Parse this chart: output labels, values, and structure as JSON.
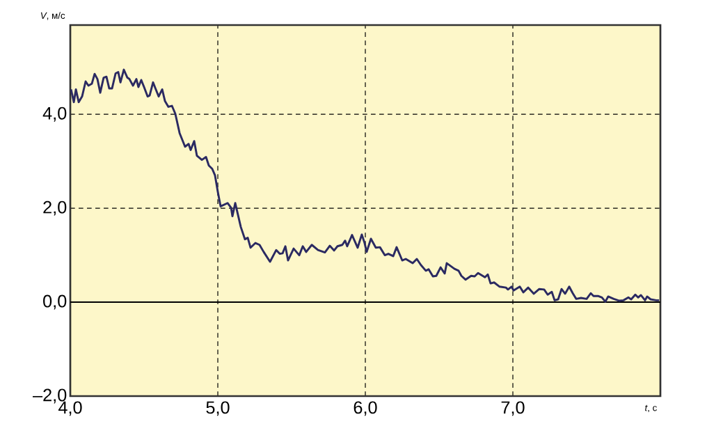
{
  "chart_data": {
    "type": "line",
    "xlabel": "*t*, с",
    "ylabel": "*V*, м/с",
    "xlim": [
      4,
      8
    ],
    "ylim": [
      -2,
      5.9
    ],
    "xticks": [
      {
        "value": 4,
        "label": "4,0"
      },
      {
        "value": 5,
        "label": "5,0"
      },
      {
        "value": 6,
        "label": "6,0"
      },
      {
        "value": 7,
        "label": "7,0"
      }
    ],
    "yticks": [
      {
        "value": -2,
        "label": "–2,0"
      },
      {
        "value": 0,
        "label": "0,0"
      },
      {
        "value": 2,
        "label": "2,0"
      },
      {
        "value": 4,
        "label": "4,0"
      }
    ],
    "grid": true,
    "ref_lines": [
      {
        "axis": "y",
        "value": 0,
        "color": "#000000",
        "line_style": "solid"
      }
    ],
    "series": [
      {
        "color": "#2b2a62",
        "x": [
          4.005,
          4.024,
          4.038,
          4.057,
          4.08,
          4.104,
          4.123,
          4.146,
          4.165,
          4.184,
          4.203,
          4.226,
          4.245,
          4.264,
          4.283,
          4.307,
          4.325,
          4.34,
          4.363,
          4.387,
          4.401,
          4.425,
          4.448,
          4.462,
          4.481,
          4.5,
          4.524,
          4.538,
          4.561,
          4.58,
          4.599,
          4.623,
          4.642,
          4.665,
          4.689,
          4.712,
          4.741,
          4.778,
          4.802,
          4.816,
          4.84,
          4.858,
          4.892,
          4.92,
          4.939,
          4.962,
          4.981,
          5.0,
          5.019,
          5.066,
          5.09,
          5.099,
          5.118,
          5.156,
          5.184,
          5.203,
          5.222,
          5.255,
          5.283,
          5.311,
          5.354,
          5.396,
          5.42,
          5.439,
          5.458,
          5.476,
          5.514,
          5.552,
          5.576,
          5.599,
          5.637,
          5.679,
          5.726,
          5.759,
          5.788,
          5.811,
          5.844,
          5.863,
          5.877,
          5.91,
          5.948,
          5.976,
          5.995,
          6.009,
          6.038,
          6.071,
          6.099,
          6.132,
          6.156,
          6.189,
          6.212,
          6.25,
          6.274,
          6.321,
          6.349,
          6.377,
          6.41,
          6.429,
          6.458,
          6.481,
          6.51,
          6.538,
          6.552,
          6.604,
          6.632,
          6.651,
          6.679,
          6.717,
          6.741,
          6.764,
          6.811,
          6.83,
          6.849,
          6.873,
          6.91,
          6.953,
          6.967,
          6.991,
          7.005,
          7.047,
          7.071,
          7.104,
          7.142,
          7.179,
          7.212,
          7.236,
          7.264,
          7.283,
          7.307,
          7.33,
          7.354,
          7.382,
          7.406,
          7.429,
          7.462,
          7.5,
          7.528,
          7.547,
          7.58,
          7.604,
          7.627,
          7.646,
          7.684,
          7.722,
          7.75,
          7.783,
          7.802,
          7.83,
          7.849,
          7.868,
          7.896,
          7.91,
          7.934,
          7.972,
          7.991
        ],
        "values": [
          4.53,
          4.26,
          4.53,
          4.26,
          4.38,
          4.7,
          4.61,
          4.65,
          4.86,
          4.75,
          4.46,
          4.78,
          4.8,
          4.55,
          4.55,
          4.87,
          4.9,
          4.68,
          4.95,
          4.78,
          4.75,
          4.61,
          4.75,
          4.58,
          4.73,
          4.58,
          4.38,
          4.4,
          4.68,
          4.53,
          4.38,
          4.53,
          4.28,
          4.16,
          4.18,
          4.01,
          3.6,
          3.31,
          3.37,
          3.24,
          3.43,
          3.12,
          3.03,
          3.09,
          2.91,
          2.84,
          2.7,
          2.35,
          2.04,
          2.11,
          2.01,
          1.83,
          2.11,
          1.6,
          1.34,
          1.37,
          1.16,
          1.26,
          1.22,
          1.07,
          0.86,
          1.11,
          1.03,
          1.04,
          1.19,
          0.89,
          1.14,
          1.0,
          1.19,
          1.07,
          1.22,
          1.11,
          1.06,
          1.2,
          1.1,
          1.19,
          1.22,
          1.31,
          1.19,
          1.43,
          1.16,
          1.44,
          1.26,
          1.07,
          1.35,
          1.16,
          1.17,
          1.0,
          1.03,
          0.98,
          1.17,
          0.89,
          0.92,
          0.83,
          0.92,
          0.79,
          0.67,
          0.7,
          0.55,
          0.56,
          0.74,
          0.61,
          0.83,
          0.71,
          0.67,
          0.56,
          0.48,
          0.56,
          0.55,
          0.62,
          0.53,
          0.59,
          0.4,
          0.42,
          0.33,
          0.31,
          0.27,
          0.33,
          0.25,
          0.33,
          0.21,
          0.31,
          0.18,
          0.28,
          0.27,
          0.16,
          0.22,
          0.04,
          0.06,
          0.28,
          0.18,
          0.33,
          0.19,
          0.07,
          0.09,
          0.07,
          0.19,
          0.13,
          0.13,
          0.1,
          0.01,
          0.12,
          0.07,
          0.03,
          0.04,
          0.1,
          0.06,
          0.16,
          0.1,
          0.15,
          0.04,
          0.12,
          0.06,
          0.04,
          0.04
        ]
      }
    ]
  }
}
